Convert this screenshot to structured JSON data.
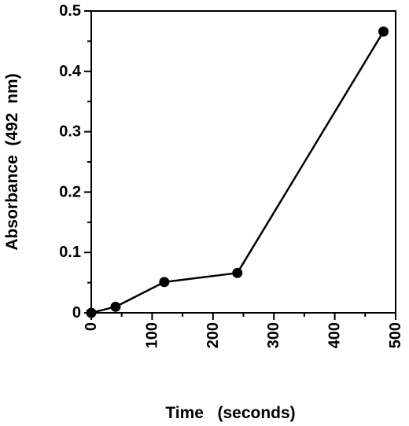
{
  "chart_data": {
    "type": "line",
    "title": "",
    "xlabel": "Time   (seconds)",
    "ylabel": "Absorbance  (492  nm)",
    "xlim": [
      0,
      500
    ],
    "ylim": [
      0,
      0.5
    ],
    "x_ticks": [
      0,
      100,
      200,
      300,
      400,
      500
    ],
    "x_tick_labels": [
      "0",
      "100",
      "200",
      "300",
      "400",
      "500"
    ],
    "y_ticks": [
      0,
      0.1,
      0.2,
      0.3,
      0.4,
      0.5
    ],
    "y_tick_labels": [
      "0",
      "0.1",
      "0.2",
      "0.3",
      "0.4",
      "0.5"
    ],
    "grid": false,
    "legend": "none",
    "series": [
      {
        "x": [
          0,
          40,
          120,
          240,
          480
        ],
        "y": [
          0,
          0.01,
          0.051,
          0.066,
          0.466
        ]
      }
    ],
    "colors": {
      "line": "#000000",
      "marker": "#000000",
      "axis": "#000000"
    }
  }
}
